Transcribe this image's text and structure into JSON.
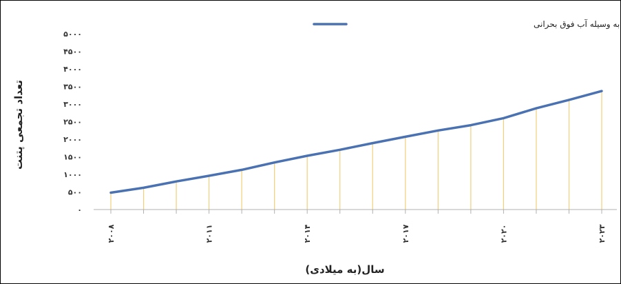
{
  "chart_data": {
    "type": "line",
    "title": "",
    "xlabel": "سال(به میلادی)",
    "ylabel": "تعداد تجمعی پتنت",
    "x": [
      2008,
      2009,
      2010,
      2011,
      2012,
      2013,
      2014,
      2015,
      2016,
      2017,
      2018,
      2019,
      2020,
      2021,
      2022,
      2023
    ],
    "xtick_values": [
      2008,
      2011,
      2014,
      2017,
      2020,
      2023
    ],
    "xtick_labels": [
      "۲۰۰۸",
      "۲۰۱۱",
      "۲۰۱۴",
      "۲۰۱۷",
      "۲۰۲۰",
      "۲۰۲۳"
    ],
    "ytick_values": [
      0,
      500,
      1000,
      1500,
      2000,
      2500,
      3000,
      3500,
      4000,
      4500,
      5000
    ],
    "ytick_labels": [
      "۰",
      "۵۰۰",
      "۱۰۰۰",
      "۱۵۰۰",
      "۲۰۰۰",
      "۲۵۰۰",
      "۳۰۰۰",
      "۳۵۰۰",
      "۴۰۰۰",
      "۴۵۰۰",
      "۵۰۰۰"
    ],
    "ylim": [
      0,
      5000
    ],
    "xlim": [
      2008,
      2023
    ],
    "grid": false,
    "drop_lines": true,
    "legend_position": "top-right",
    "series": [
      {
        "name": "گازی سازی به وسیله آب فوق بحرانی",
        "color": "#4a72b2",
        "values": [
          480,
          620,
          800,
          960,
          1130,
          1340,
          1530,
          1700,
          1890,
          2070,
          2250,
          2400,
          2600,
          2880,
          3120,
          3370
        ]
      }
    ],
    "drop_line_color": "#f2cf7a"
  }
}
